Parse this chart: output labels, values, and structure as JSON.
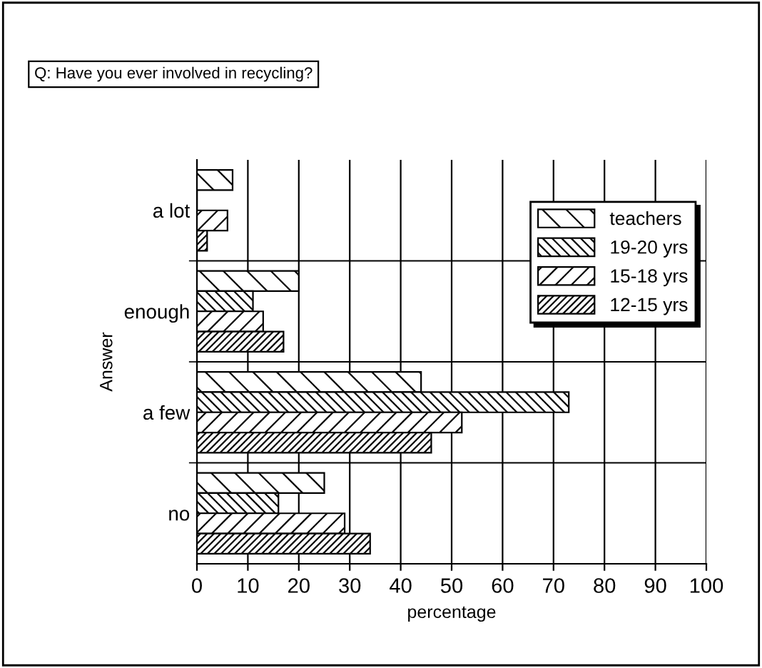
{
  "chart_data": {
    "type": "bar",
    "orientation": "horizontal",
    "title": "Q: Have you ever involved in recycling?",
    "xlabel": "percentage",
    "ylabel": "Answer",
    "categories": [
      "a lot",
      "enough",
      "a few",
      "no"
    ],
    "series": [
      {
        "name": "teachers",
        "color": "#000000",
        "values": [
          7,
          20,
          44,
          25
        ]
      },
      {
        "name": "19-20 yrs",
        "color": "#000000",
        "values": [
          0,
          11,
          73,
          16
        ]
      },
      {
        "name": "15-18 yrs",
        "color": "#000000",
        "values": [
          6,
          13,
          52,
          29
        ]
      },
      {
        "name": "12-15 yrs",
        "color": "#000000",
        "values": [
          2,
          17,
          46,
          34
        ]
      }
    ],
    "xlim": [
      0,
      100
    ],
    "xticks": [
      0,
      10,
      20,
      30,
      40,
      50,
      60,
      70,
      80,
      90,
      100
    ],
    "grid": "x",
    "legend": "top right"
  }
}
